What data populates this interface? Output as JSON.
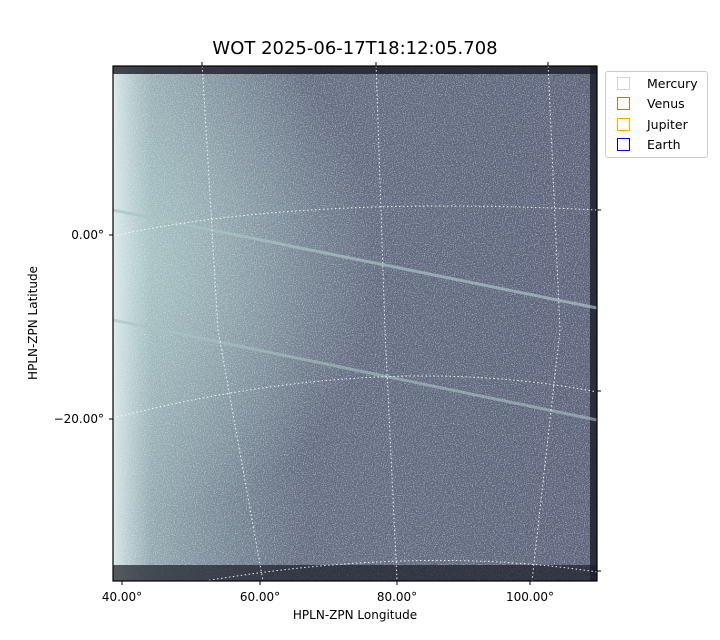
{
  "chart_data": {
    "type": "image",
    "title": "WOT 2025-06-17T18:12:05.708",
    "xlabel": "HPLN-ZPN Longitude",
    "ylabel": "HPLN-ZPN Latitude",
    "x_ticks": [
      "40.00°",
      "60.00°",
      "80.00°",
      "100.00°"
    ],
    "y_ticks": [
      "0.00°",
      "−20.00°"
    ],
    "colormap": "bone",
    "grid": true,
    "legend_placement": "outside-top-right",
    "legend": [
      {
        "label": "Mercury",
        "color": "#d3d3d3"
      },
      {
        "label": "Venus",
        "color": "#c0703a"
      },
      {
        "label": "Jupiter",
        "color": "#ffa500"
      },
      {
        "label": "Earth",
        "color": "#0000ff"
      }
    ]
  }
}
